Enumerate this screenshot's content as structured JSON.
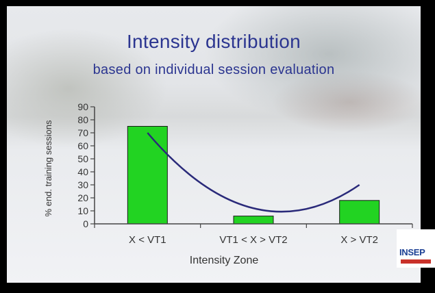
{
  "slide": {
    "title": "Intensity distribution",
    "subtitle": "based on individual session evaluation"
  },
  "logo": {
    "text": "INSEP"
  },
  "colors": {
    "title": "#2b3590",
    "bar": "#22d322",
    "curve": "#2a2a7a",
    "axis": "#444444"
  },
  "chart_data": {
    "type": "bar",
    "categories": [
      "X < VT1",
      "VT1 < X > VT2",
      "X > VT2"
    ],
    "values": [
      75,
      6,
      18
    ],
    "ylabel": "% end. training sessions",
    "xlabel": "Intensity Zone",
    "ylim": [
      0,
      90
    ],
    "yticks": [
      0,
      10,
      20,
      30,
      40,
      50,
      60,
      70,
      80,
      90
    ],
    "grid": false,
    "legend": "none",
    "overlay_curve": {
      "type": "line",
      "points": [
        [
          0,
          70
        ],
        [
          1,
          12
        ],
        [
          2,
          30
        ]
      ]
    }
  }
}
